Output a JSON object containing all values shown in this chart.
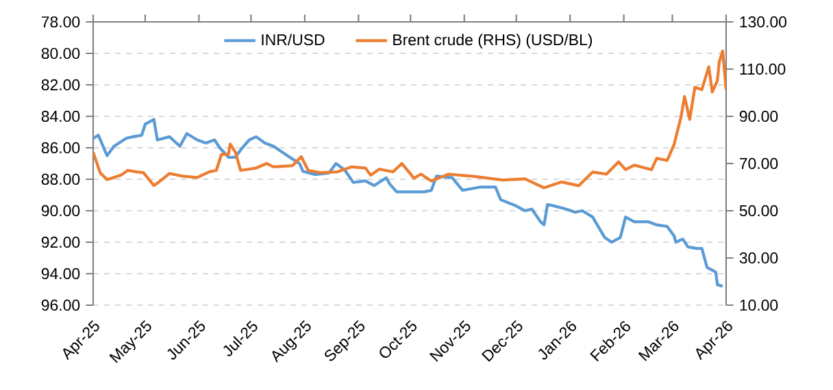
{
  "chart_data": {
    "type": "line",
    "xlim": [
      "2025-04-01",
      "2026-04-01"
    ],
    "xticks": [
      {
        "value": "2025-04-01",
        "label": "Apr-25"
      },
      {
        "value": "2025-05-01",
        "label": "May-25"
      },
      {
        "value": "2025-06-01",
        "label": "Jun-25"
      },
      {
        "value": "2025-07-01",
        "label": "Jul-25"
      },
      {
        "value": "2025-08-01",
        "label": "Aug-25"
      },
      {
        "value": "2025-09-01",
        "label": "Sep-25"
      },
      {
        "value": "2025-10-01",
        "label": "Oct-25"
      },
      {
        "value": "2025-11-01",
        "label": "Nov-25"
      },
      {
        "value": "2025-12-01",
        "label": "Dec-25"
      },
      {
        "value": "2026-01-01",
        "label": "Jan-26"
      },
      {
        "value": "2026-02-01",
        "label": "Feb-26"
      },
      {
        "value": "2026-03-01",
        "label": "Mar-26"
      },
      {
        "value": "2026-04-01",
        "label": "Apr-26"
      }
    ],
    "ylim": [
      96,
      78
    ],
    "yticks": [
      {
        "value": 78,
        "label": "78.00"
      },
      {
        "value": 80,
        "label": "80.00"
      },
      {
        "value": 82,
        "label": "82.00"
      },
      {
        "value": 84,
        "label": "84.00"
      },
      {
        "value": 86,
        "label": "86.00"
      },
      {
        "value": 88,
        "label": "88.00"
      },
      {
        "value": 90,
        "label": "90.00"
      },
      {
        "value": 92,
        "label": "92.00"
      },
      {
        "value": 94,
        "label": "94.00"
      },
      {
        "value": 96,
        "label": "96.00"
      }
    ],
    "y2lim": [
      10,
      130
    ],
    "y2ticks": [
      {
        "value": 10,
        "label": "10.00"
      },
      {
        "value": 30,
        "label": "30.00"
      },
      {
        "value": 50,
        "label": "50.00"
      },
      {
        "value": 70,
        "label": "70.00"
      },
      {
        "value": 90,
        "label": "90.00"
      },
      {
        "value": 110,
        "label": "110.00"
      },
      {
        "value": 130,
        "label": "130.00"
      }
    ],
    "grid": "y",
    "legend": "top",
    "marker": "none",
    "line_style": "solid",
    "series": [
      {
        "name": "INR/USD",
        "color": "#5b9bd5",
        "x": [
          "2025-04-01",
          "2025-04-04",
          "2025-04-09",
          "2025-04-13",
          "2025-04-20",
          "2025-04-24",
          "2025-04-29",
          "2025-05-01",
          "2025-05-06",
          "2025-05-08",
          "2025-05-15",
          "2025-05-21",
          "2025-05-25",
          "2025-05-31",
          "2025-06-05",
          "2025-06-10",
          "2025-06-13",
          "2025-06-18",
          "2025-06-22",
          "2025-06-26",
          "2025-06-30",
          "2025-07-04",
          "2025-07-09",
          "2025-07-14",
          "2025-07-22",
          "2025-07-29",
          "2025-07-31",
          "2025-08-07",
          "2025-08-15",
          "2025-08-19",
          "2025-08-24",
          "2025-08-29",
          "2025-09-05",
          "2025-09-10",
          "2025-09-17",
          "2025-09-19",
          "2025-09-23",
          "2025-10-09",
          "2025-10-13",
          "2025-10-16",
          "2025-10-25",
          "2025-10-31",
          "2025-11-10",
          "2025-11-19",
          "2025-11-22",
          "2025-12-01",
          "2025-12-06",
          "2025-12-10",
          "2025-12-15",
          "2025-12-17",
          "2025-12-19",
          "2025-12-23",
          "2025-12-30",
          "2026-01-04",
          "2026-01-08",
          "2026-01-14",
          "2026-01-21",
          "2026-01-25",
          "2026-01-30",
          "2026-02-02",
          "2026-02-07",
          "2026-02-15",
          "2026-02-20",
          "2026-02-26",
          "2026-03-02",
          "2026-03-03",
          "2026-03-07",
          "2026-03-10",
          "2026-03-15",
          "2026-03-18",
          "2026-03-21",
          "2026-03-26",
          "2026-03-27",
          "2026-03-30"
        ],
        "values": [
          85.4,
          85.2,
          86.5,
          85.9,
          85.4,
          85.3,
          85.2,
          84.5,
          84.2,
          85.5,
          85.3,
          85.9,
          85.1,
          85.5,
          85.7,
          85.5,
          86.0,
          86.6,
          86.6,
          86.0,
          85.5,
          85.3,
          85.7,
          85.9,
          86.5,
          87.0,
          87.5,
          87.7,
          87.6,
          87.0,
          87.4,
          88.2,
          88.1,
          88.4,
          87.9,
          88.3,
          88.8,
          88.8,
          88.7,
          87.8,
          87.9,
          88.7,
          88.5,
          88.5,
          89.3,
          89.7,
          90.0,
          89.9,
          90.7,
          90.9,
          89.6,
          89.7,
          89.9,
          90.1,
          90.0,
          90.4,
          91.7,
          92.0,
          91.7,
          90.4,
          90.7,
          90.7,
          90.9,
          91.0,
          91.6,
          92.0,
          91.8,
          92.3,
          92.4,
          92.4,
          93.6,
          93.9,
          94.7,
          94.8
        ]
      },
      {
        "name": "Brent crude (RHS) (USD/BL)",
        "color": "#ed7d31",
        "axis": "y2",
        "x": [
          "2025-04-01",
          "2025-04-05",
          "2025-04-09",
          "2025-04-13",
          "2025-04-17",
          "2025-04-21",
          "2025-04-26",
          "2025-04-30",
          "2025-05-06",
          "2025-05-09",
          "2025-05-15",
          "2025-05-23",
          "2025-05-31",
          "2025-06-07",
          "2025-06-11",
          "2025-06-14",
          "2025-06-18",
          "2025-06-19",
          "2025-06-22",
          "2025-06-25",
          "2025-07-04",
          "2025-07-10",
          "2025-07-14",
          "2025-07-25",
          "2025-07-30",
          "2025-08-03",
          "2025-08-10",
          "2025-08-20",
          "2025-08-28",
          "2025-09-05",
          "2025-09-08",
          "2025-09-13",
          "2025-09-21",
          "2025-09-26",
          "2025-10-03",
          "2025-10-07",
          "2025-10-13",
          "2025-10-23",
          "2025-11-07",
          "2025-11-23",
          "2025-12-06",
          "2025-12-17",
          "2025-12-27",
          "2026-01-06",
          "2026-01-14",
          "2026-01-22",
          "2026-01-29",
          "2026-02-02",
          "2026-02-07",
          "2026-02-17",
          "2026-02-20",
          "2026-02-26",
          "2026-03-02",
          "2026-03-06",
          "2026-03-08",
          "2026-03-11",
          "2026-03-14",
          "2026-03-18",
          "2026-03-22",
          "2026-03-24",
          "2026-03-27",
          "2026-03-28",
          "2026-03-30",
          "2026-04-01"
        ],
        "values": [
          74.8,
          66.1,
          63.2,
          64.1,
          65.1,
          67.1,
          66.5,
          66.1,
          60.7,
          62.2,
          65.8,
          64.6,
          64.1,
          66.5,
          67.1,
          73.9,
          73.9,
          78.2,
          74.8,
          67.1,
          68.1,
          70.0,
          68.6,
          69.1,
          72.9,
          67.1,
          66.1,
          66.5,
          68.6,
          68.1,
          65.1,
          67.6,
          66.5,
          70.0,
          63.8,
          65.5,
          62.6,
          65.5,
          64.5,
          63.0,
          63.5,
          59.7,
          62.2,
          60.6,
          66.4,
          65.5,
          70.7,
          67.4,
          69.3,
          67.4,
          72.2,
          71.3,
          78.1,
          89.7,
          98.4,
          88.7,
          102.3,
          101.3,
          111.0,
          100.3,
          105.2,
          112.9,
          117.7,
          101.3
        ]
      }
    ]
  }
}
